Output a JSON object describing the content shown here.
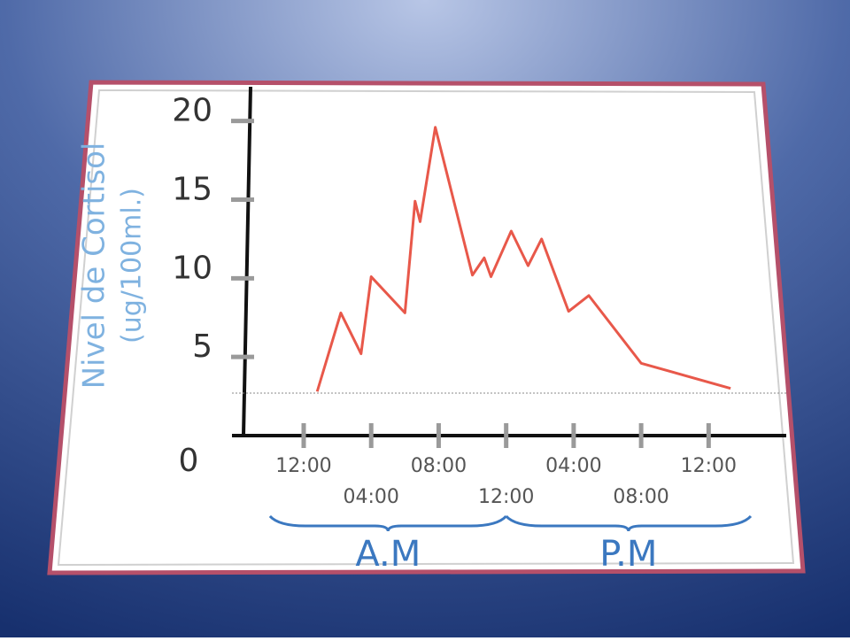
{
  "chart_data": {
    "type": "line",
    "ylabel": [
      "Nivel de Cortisol",
      "(ug/100ml.)"
    ],
    "x": [
      0.8,
      2.2,
      3.4,
      4.0,
      6.0,
      6.6,
      6.9,
      7.8,
      10.0,
      10.7,
      11.1,
      12.3,
      13.3,
      14.1,
      15.7,
      16.9,
      20.0,
      25.3
    ],
    "values": [
      2.8,
      7.8,
      5.2,
      10.1,
      7.8,
      14.9,
      13.6,
      19.6,
      10.2,
      11.3,
      10.1,
      13.0,
      10.8,
      12.5,
      7.9,
      8.9,
      4.6,
      3.0
    ],
    "color": "#e8584a",
    "baseline": 2.7,
    "xlim": [
      -4.25,
      28.6
    ],
    "xticks": [
      {
        "value": 0,
        "label": "12:00"
      },
      {
        "value": 4,
        "label": "04:00"
      },
      {
        "value": 8,
        "label": "08:00"
      },
      {
        "value": 12,
        "label": "12:00"
      },
      {
        "value": 16,
        "label": "04:00"
      },
      {
        "value": 20,
        "label": "08:00"
      },
      {
        "value": 24,
        "label": "12:00"
      }
    ],
    "ylim": [
      0,
      21.5
    ],
    "yticks": [
      0,
      5,
      10,
      15,
      20
    ],
    "periods": [
      {
        "label": "A.M",
        "range": [
          -2,
          12
        ]
      },
      {
        "label": "P.M",
        "range": [
          12,
          26.5
        ]
      }
    ]
  }
}
